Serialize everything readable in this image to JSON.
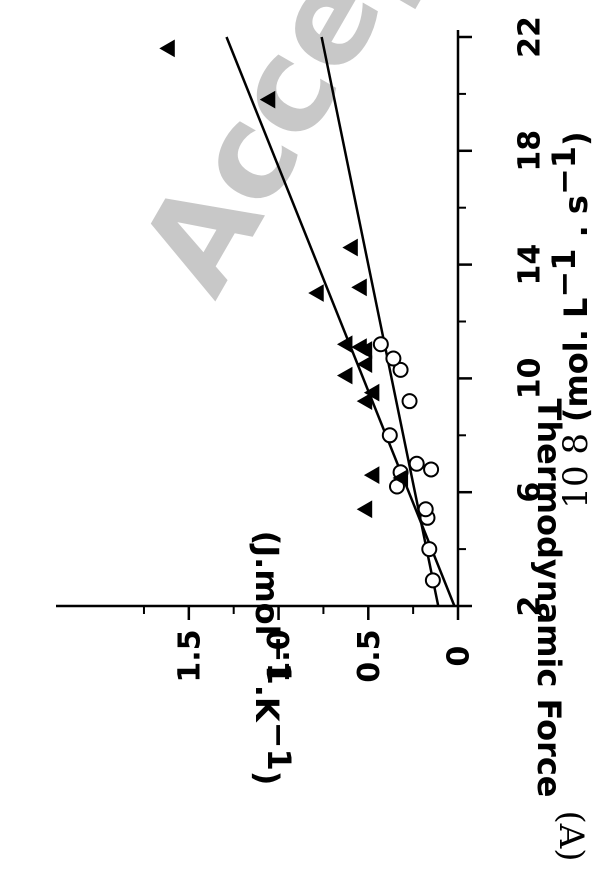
{
  "watermark": "Accepted",
  "panel_label": "(A)",
  "chart_data": {
    "type": "scatter",
    "x_label": {
      "prefix": "10",
      "exponent": "8",
      "units": "(mol. L",
      "units_exp1": "−1",
      "units_mid": " . s",
      "units_exp2": "−1",
      "units_close": ")"
    },
    "y_label": {
      "line1": "Thermodynamic Force",
      "line2_start": "(J.mol",
      "line2_exp1": "−1",
      "line2_mid": ".K",
      "line2_exp2": "−1",
      "line2_end": ")"
    },
    "xlim": [
      2,
      22
    ],
    "ylim": [
      0,
      1.8
    ],
    "x_ticks": [
      {
        "value": 2,
        "label": "2"
      },
      {
        "value": 6,
        "label": "6"
      },
      {
        "value": 10,
        "label": "10"
      },
      {
        "value": 14,
        "label": "14"
      },
      {
        "value": 18,
        "label": "18"
      },
      {
        "value": 22,
        "label": "22"
      }
    ],
    "y_ticks": [
      {
        "value": 0,
        "label": "0"
      },
      {
        "value": 0.5,
        "label": "0.5"
      },
      {
        "value": 1.0,
        "label": "1.0"
      },
      {
        "value": 1.5,
        "label": "1.5"
      }
    ],
    "x_minor_ticks": [
      4,
      8,
      12,
      16,
      20
    ],
    "y_minor_ticks": [
      0.25,
      0.75,
      1.25,
      1.75
    ],
    "series": [
      {
        "marker": "open-circle",
        "points": [
          [
            2.9,
            0.14
          ],
          [
            4.0,
            0.16
          ],
          [
            5.1,
            0.17
          ],
          [
            5.4,
            0.18
          ],
          [
            6.2,
            0.34
          ],
          [
            6.7,
            0.32
          ],
          [
            7.0,
            0.23
          ],
          [
            6.8,
            0.15
          ],
          [
            8.0,
            0.38
          ],
          [
            9.2,
            0.27
          ],
          [
            10.3,
            0.32
          ],
          [
            10.7,
            0.36
          ],
          [
            11.2,
            0.43
          ]
        ]
      },
      {
        "marker": "filled-triangle",
        "points": [
          [
            5.4,
            0.52
          ],
          [
            6.6,
            0.48
          ],
          [
            6.5,
            0.32
          ],
          [
            9.2,
            0.52
          ],
          [
            9.5,
            0.48
          ],
          [
            10.1,
            0.63
          ],
          [
            10.5,
            0.52
          ],
          [
            11.0,
            0.52
          ],
          [
            11.1,
            0.55
          ],
          [
            11.2,
            0.63
          ],
          [
            13.0,
            0.79
          ],
          [
            13.2,
            0.55
          ],
          [
            14.6,
            0.6
          ],
          [
            19.8,
            1.06
          ],
          [
            21.6,
            1.62
          ]
        ]
      }
    ],
    "fit_lines": [
      {
        "x": [
          2,
          22
        ],
        "y": [
          0.02,
          1.29
        ]
      },
      {
        "x": [
          2,
          22
        ],
        "y": [
          0.11,
          0.76
        ]
      }
    ]
  }
}
